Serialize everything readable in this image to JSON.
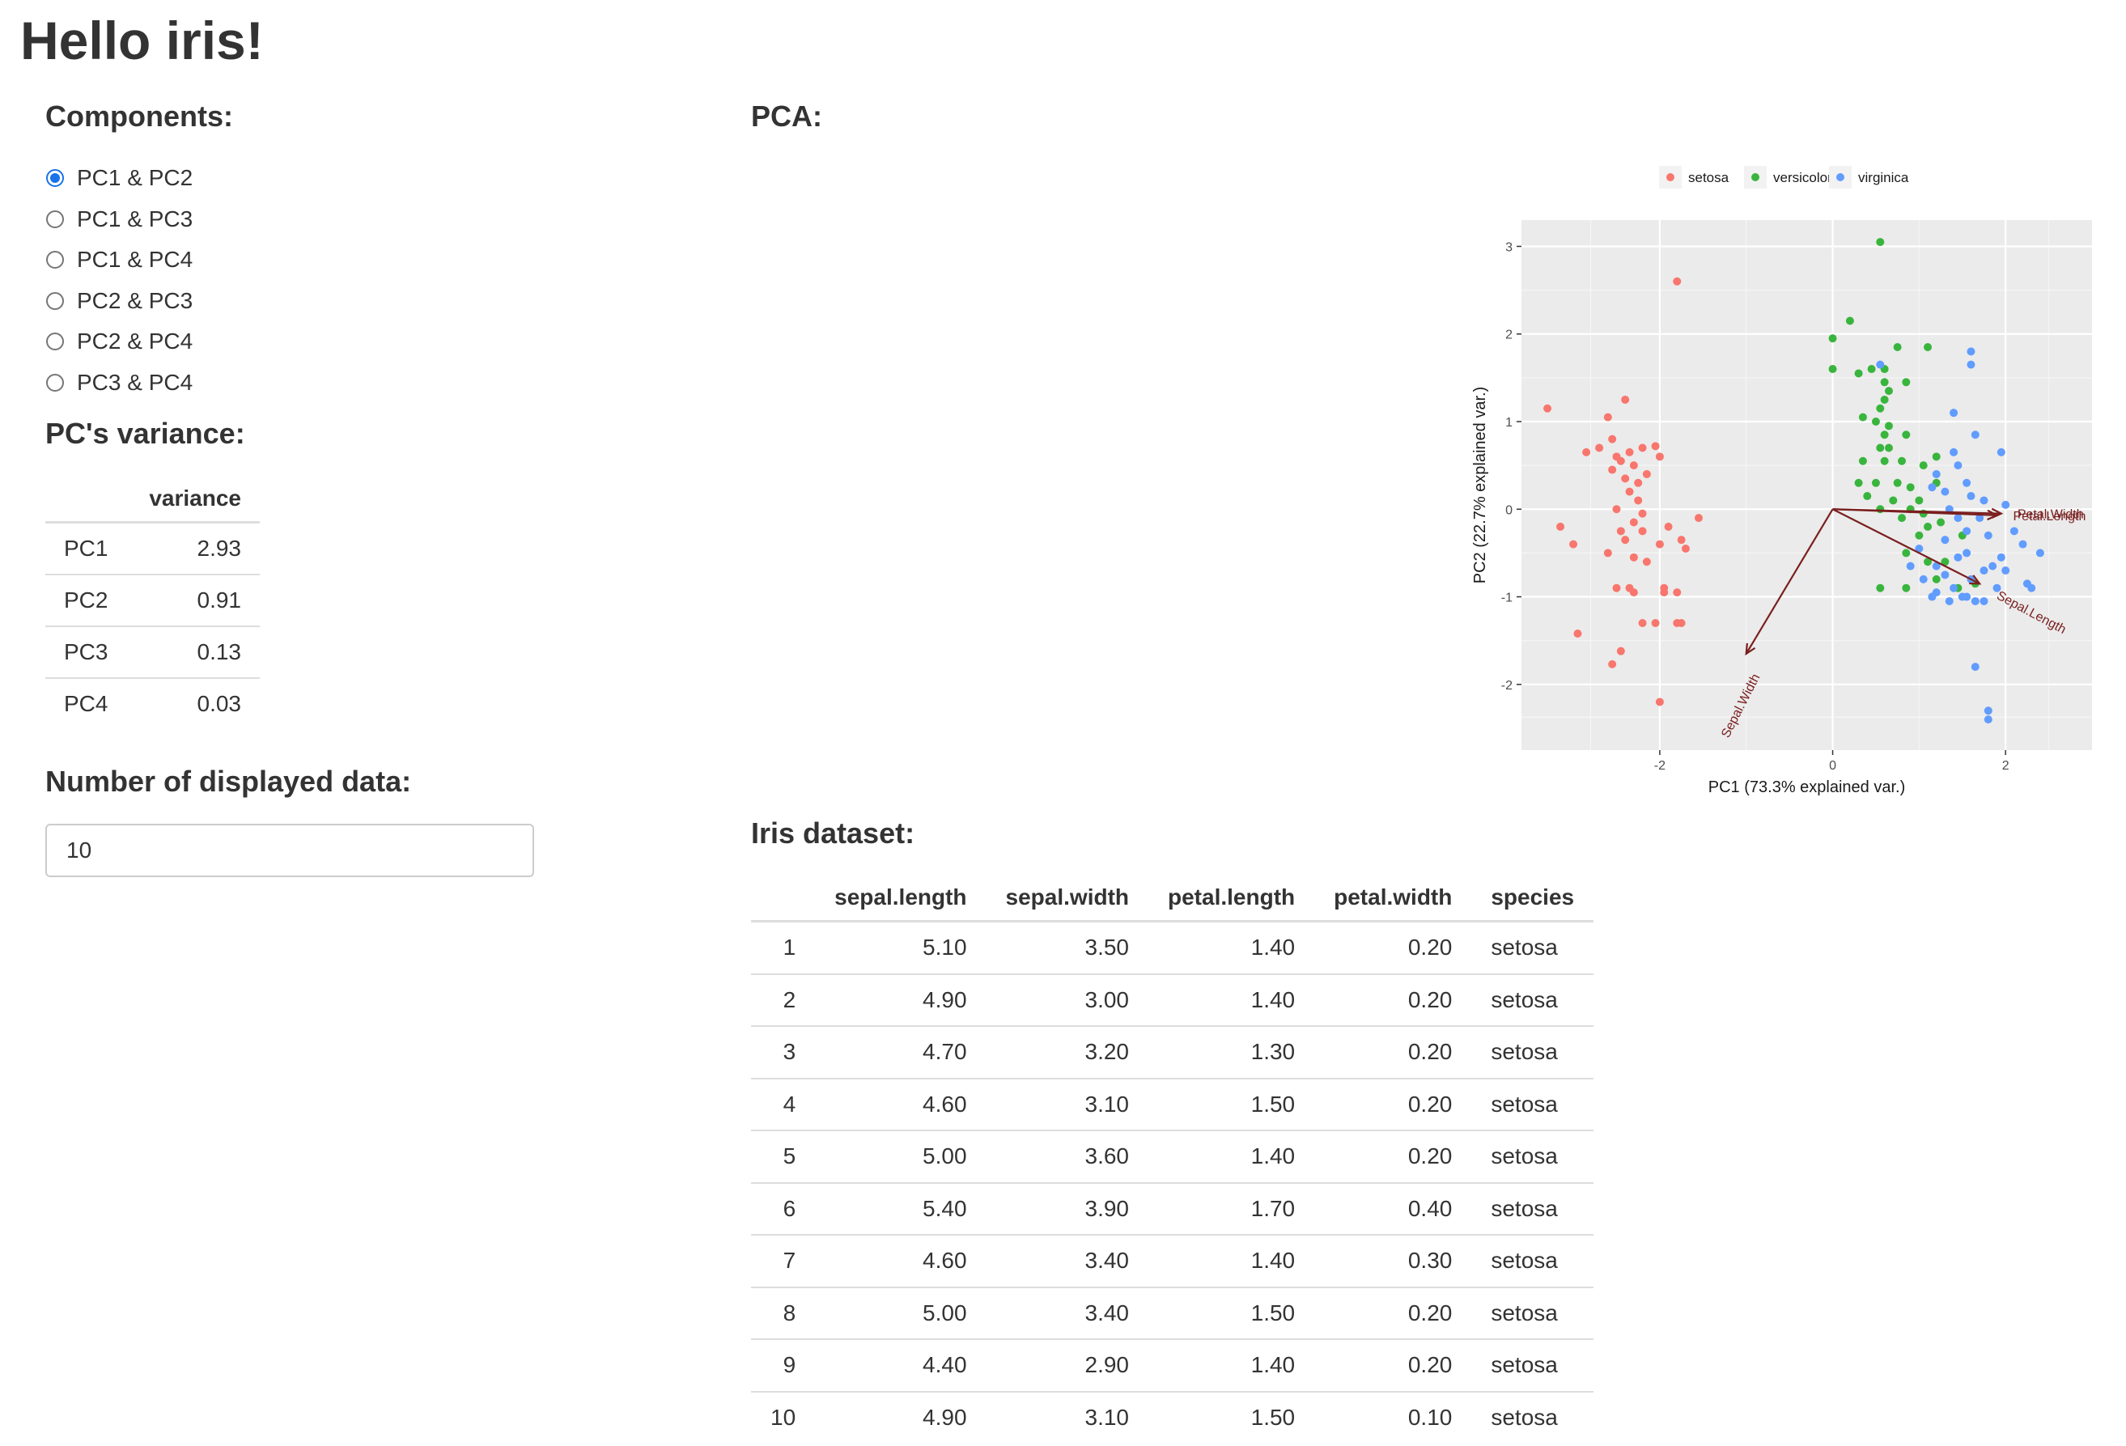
{
  "title": "Hello iris!",
  "components": {
    "heading": "Components:",
    "options": [
      "PC1 & PC2",
      "PC1 & PC3",
      "PC1 & PC4",
      "PC2 & PC3",
      "PC2 & PC4",
      "PC3 & PC4"
    ],
    "selected_index": 0
  },
  "variance": {
    "heading": "PC's variance:",
    "column_header": "variance",
    "rows": [
      {
        "pc": "PC1",
        "value": "2.93"
      },
      {
        "pc": "PC2",
        "value": "0.91"
      },
      {
        "pc": "PC3",
        "value": "0.13"
      },
      {
        "pc": "PC4",
        "value": "0.03"
      }
    ]
  },
  "displayed": {
    "heading": "Number of displayed data:",
    "value": "10"
  },
  "pca": {
    "heading": "PCA:"
  },
  "chart_data": {
    "type": "scatter",
    "xlabel": "PC1 (73.3% explained var.)",
    "ylabel": "PC2 (22.7% explained var.)",
    "xlim": [
      -3.6,
      3.0
    ],
    "ylim": [
      -2.75,
      3.3
    ],
    "xticks": [
      -2,
      0,
      2
    ],
    "yticks": [
      -2,
      -1,
      0,
      1,
      2,
      3
    ],
    "xtick_labels": [
      "-2",
      "0",
      "2"
    ],
    "ytick_labels": [
      "-2",
      "-1",
      "0",
      "1",
      "2",
      "3"
    ],
    "grid": true,
    "legend_position": "top",
    "background": "#ebebeb",
    "series": [
      {
        "name": "setosa",
        "color": "#f8766d",
        "points": [
          [
            -1.8,
            2.6
          ],
          [
            -3.3,
            1.15
          ],
          [
            -2.6,
            1.05
          ],
          [
            -2.4,
            1.25
          ],
          [
            -2.55,
            0.8
          ],
          [
            -2.85,
            0.65
          ],
          [
            -2.7,
            0.7
          ],
          [
            -2.5,
            0.6
          ],
          [
            -2.35,
            0.65
          ],
          [
            -2.2,
            0.7
          ],
          [
            -2.05,
            0.72
          ],
          [
            -2.0,
            0.6
          ],
          [
            -2.45,
            0.55
          ],
          [
            -2.3,
            0.5
          ],
          [
            -2.55,
            0.45
          ],
          [
            -2.4,
            0.35
          ],
          [
            -2.25,
            0.3
          ],
          [
            -2.15,
            0.4
          ],
          [
            -2.35,
            0.2
          ],
          [
            -2.25,
            0.1
          ],
          [
            -2.5,
            0.0
          ],
          [
            -2.2,
            -0.05
          ],
          [
            -2.3,
            -0.15
          ],
          [
            -2.2,
            -0.25
          ],
          [
            -2.4,
            -0.35
          ],
          [
            -2.6,
            -0.5
          ],
          [
            -2.3,
            -0.55
          ],
          [
            -2.15,
            -0.6
          ],
          [
            -2.45,
            -0.25
          ],
          [
            -1.55,
            -0.1
          ],
          [
            -1.9,
            -0.2
          ],
          [
            -1.75,
            -0.35
          ],
          [
            -1.7,
            -0.45
          ],
          [
            -2.0,
            -0.4
          ],
          [
            -3.15,
            -0.2
          ],
          [
            -3.0,
            -0.4
          ],
          [
            -2.5,
            -0.9
          ],
          [
            -2.35,
            -0.9
          ],
          [
            -2.3,
            -0.95
          ],
          [
            -1.95,
            -0.95
          ],
          [
            -2.2,
            -1.3
          ],
          [
            -2.05,
            -1.3
          ],
          [
            -1.95,
            -0.9
          ],
          [
            -1.8,
            -0.95
          ],
          [
            -1.8,
            -1.3
          ],
          [
            -1.75,
            -1.3
          ],
          [
            -2.95,
            -1.42
          ],
          [
            -2.45,
            -1.62
          ],
          [
            -2.55,
            -1.77
          ],
          [
            -2.0,
            -2.2
          ]
        ]
      },
      {
        "name": "versicolor",
        "color": "#39b53d",
        "points": [
          [
            0.55,
            3.05
          ],
          [
            0.2,
            2.15
          ],
          [
            0.0,
            1.95
          ],
          [
            0.75,
            1.85
          ],
          [
            1.1,
            1.85
          ],
          [
            0.45,
            1.6
          ],
          [
            0.6,
            1.6
          ],
          [
            0.0,
            1.6
          ],
          [
            0.85,
            1.45
          ],
          [
            0.6,
            1.45
          ],
          [
            0.3,
            1.55
          ],
          [
            0.65,
            1.35
          ],
          [
            0.6,
            1.25
          ],
          [
            0.55,
            1.15
          ],
          [
            0.35,
            1.05
          ],
          [
            0.5,
            1.0
          ],
          [
            0.65,
            0.95
          ],
          [
            0.85,
            0.85
          ],
          [
            0.6,
            0.85
          ],
          [
            0.55,
            0.7
          ],
          [
            0.65,
            0.7
          ],
          [
            1.2,
            0.6
          ],
          [
            0.35,
            0.55
          ],
          [
            0.6,
            0.55
          ],
          [
            0.8,
            0.55
          ],
          [
            1.05,
            0.5
          ],
          [
            0.3,
            0.3
          ],
          [
            0.5,
            0.3
          ],
          [
            0.75,
            0.3
          ],
          [
            0.9,
            0.25
          ],
          [
            1.2,
            0.3
          ],
          [
            1.0,
            0.1
          ],
          [
            0.4,
            0.15
          ],
          [
            0.7,
            0.1
          ],
          [
            0.55,
            0.0
          ],
          [
            0.9,
            0.0
          ],
          [
            0.8,
            -0.1
          ],
          [
            1.05,
            -0.05
          ],
          [
            1.25,
            -0.15
          ],
          [
            1.0,
            -0.3
          ],
          [
            0.85,
            -0.5
          ],
          [
            1.1,
            -0.6
          ],
          [
            1.3,
            -0.6
          ],
          [
            1.2,
            -0.8
          ],
          [
            0.55,
            -0.9
          ],
          [
            0.85,
            -0.9
          ],
          [
            1.45,
            -0.9
          ],
          [
            1.65,
            -0.85
          ],
          [
            1.1,
            -0.2
          ],
          [
            1.5,
            -0.3
          ]
        ]
      },
      {
        "name": "virginica",
        "color": "#619cff",
        "points": [
          [
            1.6,
            1.8
          ],
          [
            1.6,
            1.65
          ],
          [
            0.55,
            1.65
          ],
          [
            1.4,
            1.1
          ],
          [
            1.65,
            0.85
          ],
          [
            1.95,
            0.65
          ],
          [
            1.4,
            0.65
          ],
          [
            1.2,
            0.4
          ],
          [
            1.15,
            0.25
          ],
          [
            1.3,
            0.2
          ],
          [
            1.55,
            0.3
          ],
          [
            1.45,
            0.5
          ],
          [
            1.6,
            0.15
          ],
          [
            1.75,
            0.1
          ],
          [
            2.0,
            0.05
          ],
          [
            1.35,
            0.0
          ],
          [
            1.45,
            -0.1
          ],
          [
            1.7,
            -0.1
          ],
          [
            1.55,
            -0.25
          ],
          [
            1.3,
            -0.35
          ],
          [
            1.8,
            -0.3
          ],
          [
            2.1,
            -0.25
          ],
          [
            2.2,
            -0.4
          ],
          [
            2.4,
            -0.5
          ],
          [
            1.95,
            -0.55
          ],
          [
            2.0,
            -0.7
          ],
          [
            2.25,
            -0.85
          ],
          [
            2.3,
            -0.9
          ],
          [
            1.6,
            -0.8
          ],
          [
            1.75,
            -0.7
          ],
          [
            1.85,
            -0.65
          ],
          [
            1.45,
            -0.55
          ],
          [
            1.55,
            -0.5
          ],
          [
            1.3,
            -0.75
          ],
          [
            1.2,
            -0.65
          ],
          [
            1.2,
            -0.95
          ],
          [
            1.35,
            -1.05
          ],
          [
            1.5,
            -1.0
          ],
          [
            1.65,
            -1.05
          ],
          [
            1.75,
            -1.05
          ],
          [
            1.4,
            -0.9
          ],
          [
            1.05,
            -0.8
          ],
          [
            1.15,
            -1.0
          ],
          [
            1.55,
            -1.0
          ],
          [
            1.65,
            -1.8
          ],
          [
            1.8,
            -2.3
          ],
          [
            1.8,
            -2.4
          ],
          [
            1.9,
            -0.9
          ],
          [
            0.9,
            -0.65
          ],
          [
            1.0,
            -0.45
          ]
        ]
      }
    ],
    "loadings": [
      {
        "label": "Petal.Width",
        "x": 1.95,
        "y": -0.05,
        "label_angle": 0
      },
      {
        "label": "Petal.Length",
        "x": 1.9,
        "y": -0.07,
        "label_angle": 0
      },
      {
        "label": "Sepal.Length",
        "x": 1.7,
        "y": -0.85,
        "label_angle": 28
      },
      {
        "label": "Sepal.Width",
        "x": -1.0,
        "y": -1.65,
        "label_angle": -63
      }
    ],
    "loading_color": "#7a1f1f"
  },
  "iris": {
    "heading": "Iris dataset:",
    "columns": [
      "",
      "sepal.length",
      "sepal.width",
      "petal.length",
      "petal.width",
      "species"
    ],
    "rows": [
      [
        "1",
        "5.10",
        "3.50",
        "1.40",
        "0.20",
        "setosa"
      ],
      [
        "2",
        "4.90",
        "3.00",
        "1.40",
        "0.20",
        "setosa"
      ],
      [
        "3",
        "4.70",
        "3.20",
        "1.30",
        "0.20",
        "setosa"
      ],
      [
        "4",
        "4.60",
        "3.10",
        "1.50",
        "0.20",
        "setosa"
      ],
      [
        "5",
        "5.00",
        "3.60",
        "1.40",
        "0.20",
        "setosa"
      ],
      [
        "6",
        "5.40",
        "3.90",
        "1.70",
        "0.40",
        "setosa"
      ],
      [
        "7",
        "4.60",
        "3.40",
        "1.40",
        "0.30",
        "setosa"
      ],
      [
        "8",
        "5.00",
        "3.40",
        "1.50",
        "0.20",
        "setosa"
      ],
      [
        "9",
        "4.40",
        "2.90",
        "1.40",
        "0.20",
        "setosa"
      ],
      [
        "10",
        "4.90",
        "3.10",
        "1.50",
        "0.10",
        "setosa"
      ]
    ]
  }
}
